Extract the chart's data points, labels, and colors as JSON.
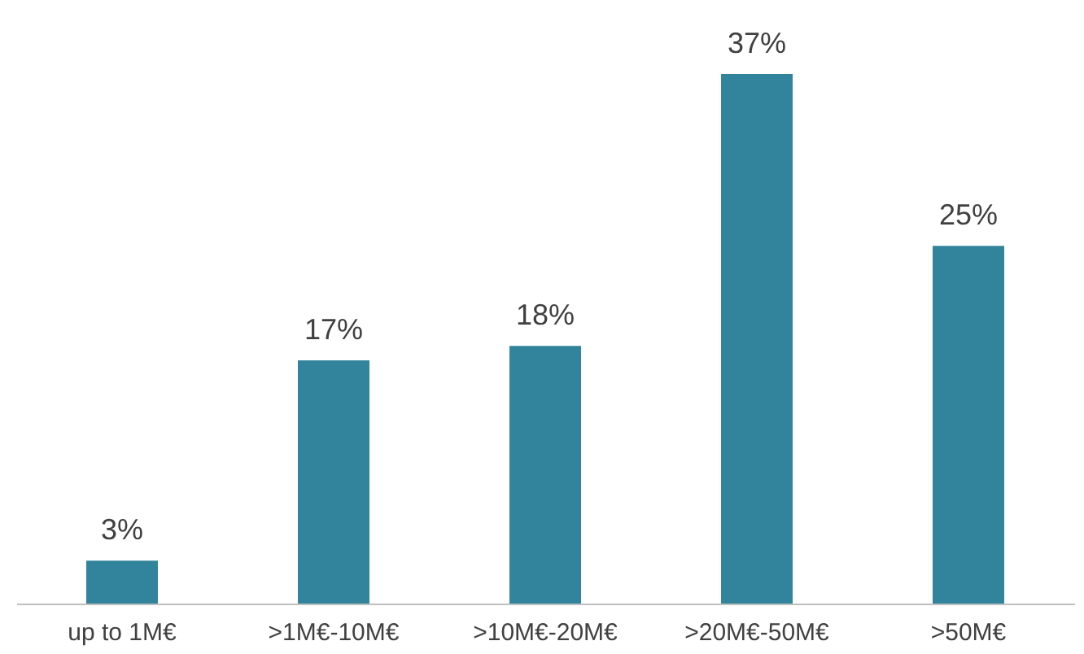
{
  "chart_data": {
    "type": "bar",
    "categories": [
      "up to 1M€",
      ">1M€-10M€",
      ">10M€-20M€",
      ">20M€-50M€",
      ">50M€"
    ],
    "values": [
      3,
      17,
      18,
      37,
      25
    ],
    "value_labels": [
      "3%",
      "17%",
      "18%",
      "37%",
      "25%"
    ],
    "color": "#31849b"
  }
}
